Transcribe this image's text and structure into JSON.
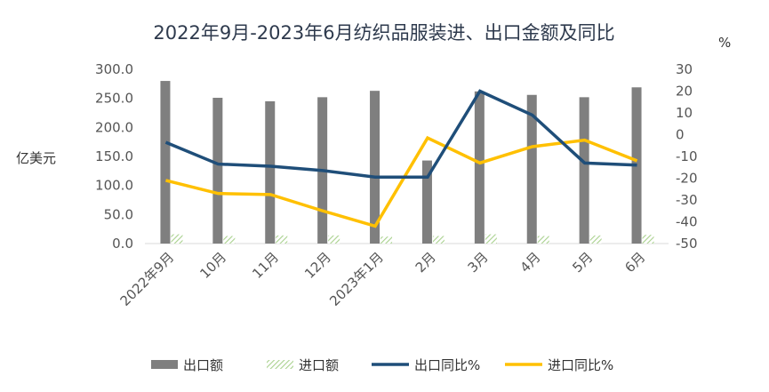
{
  "chart_data": {
    "type": "bar",
    "title": "2022年9月-2023年6月纺织品服装进、出口金额及同比",
    "ylabel_left": "亿美元",
    "ylabel_right": "%",
    "categories": [
      "2022年9月",
      "10月",
      "11月",
      "12月",
      "2023年1月",
      "2月",
      "3月",
      "4月",
      "5月",
      "6月"
    ],
    "y_left": {
      "min": 0,
      "max": 300,
      "step": 50,
      "tick_labels": [
        "0.0",
        "50.0",
        "100.0",
        "150.0",
        "200.0",
        "250.0",
        "300.0"
      ]
    },
    "y_right": {
      "min": -50,
      "max": 30,
      "step": 10,
      "tick_labels": [
        "-50",
        "-40",
        "-30",
        "-20",
        "-10",
        "0",
        "10",
        "20",
        "30"
      ]
    },
    "grid": false,
    "legend_position": "bottom",
    "series": [
      {
        "name": "出口额",
        "kind": "bar",
        "axis": "left",
        "color": "#7f7f7f",
        "values": [
          280,
          251,
          245,
          252,
          263,
          143,
          262,
          256,
          252,
          269
        ]
      },
      {
        "name": "进口额",
        "kind": "bar",
        "axis": "left",
        "color": "#a9d18e",
        "pattern": "diagonal-hatch",
        "values": [
          16,
          13,
          14,
          14,
          12,
          13,
          16,
          13,
          14,
          15
        ]
      },
      {
        "name": "出口同比%",
        "kind": "line",
        "axis": "left_right",
        "color": "#1f4e79",
        "values": [
          -3.5,
          -13.5,
          -14.5,
          -16.5,
          -19.5,
          -19.5,
          20,
          9,
          -13,
          -14
        ]
      },
      {
        "name": "进口同比%",
        "kind": "line",
        "axis": "right",
        "color": "#ffc000",
        "values": [
          -21,
          -27,
          -27.5,
          -35,
          -42,
          -1.5,
          -13,
          -5.5,
          -2.5,
          -12
        ]
      }
    ]
  }
}
